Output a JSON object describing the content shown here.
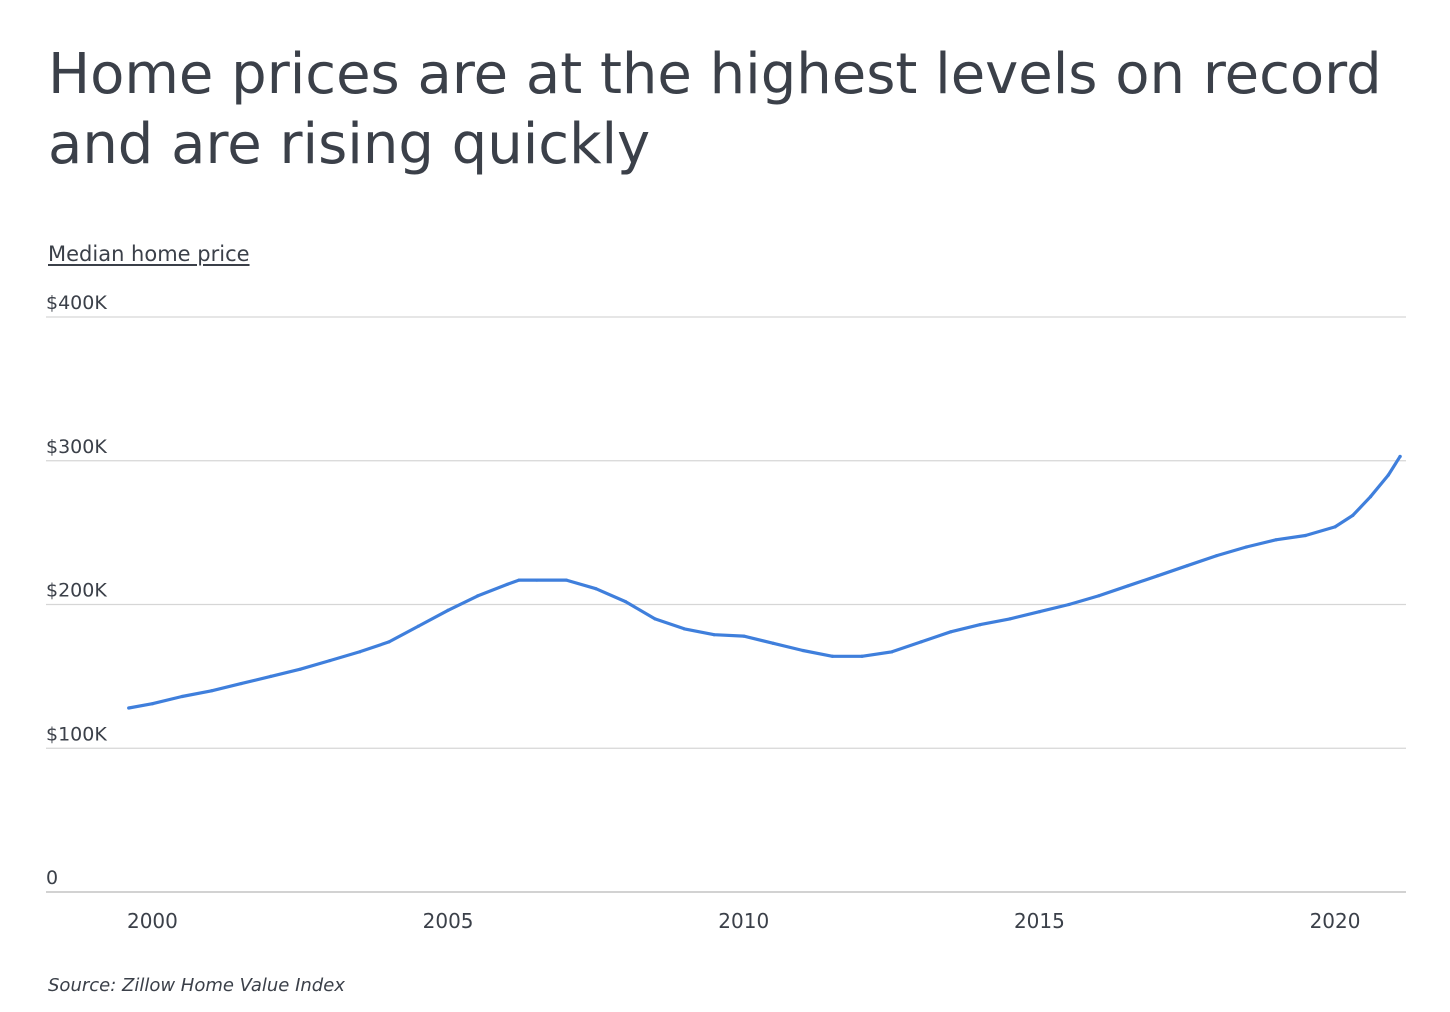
{
  "header": {
    "title": "Home prices are at the highest levels on record and are rising quickly",
    "subtitle": "Median home price"
  },
  "footer": {
    "source": "Source:  Zillow Home Value Index"
  },
  "colors": {
    "line": "#3f7fdc",
    "grid": "#d6d6d6",
    "text": "#3b4049"
  },
  "chart_data": {
    "type": "line",
    "title": "Home prices are at the highest levels on record and are rising quickly",
    "ylabel": "Median home price",
    "xlabel": "",
    "ylim": [
      0,
      400000
    ],
    "xlim": [
      1998.2,
      2021.2
    ],
    "grid": true,
    "yticks": [
      {
        "value": 0,
        "label": "0"
      },
      {
        "value": 100000,
        "label": "$100K"
      },
      {
        "value": 200000,
        "label": "$200K"
      },
      {
        "value": 300000,
        "label": "$300K"
      },
      {
        "value": 400000,
        "label": "$400K"
      }
    ],
    "xticks": [
      {
        "value": 2000,
        "label": "2000"
      },
      {
        "value": 2005,
        "label": "2005"
      },
      {
        "value": 2010,
        "label": "2010"
      },
      {
        "value": 2015,
        "label": "2015"
      },
      {
        "value": 2020,
        "label": "2020"
      }
    ],
    "series": [
      {
        "name": "Median home price",
        "x": [
          1999.6,
          2000.0,
          2000.5,
          2001.0,
          2001.5,
          2002.0,
          2002.5,
          2003.0,
          2003.5,
          2004.0,
          2004.5,
          2005.0,
          2005.5,
          2006.0,
          2006.2,
          2006.5,
          2007.0,
          2007.5,
          2008.0,
          2008.5,
          2009.0,
          2009.5,
          2010.0,
          2010.5,
          2011.0,
          2011.5,
          2012.0,
          2012.5,
          2013.0,
          2013.5,
          2014.0,
          2014.5,
          2015.0,
          2015.5,
          2016.0,
          2016.5,
          2017.0,
          2017.5,
          2018.0,
          2018.5,
          2019.0,
          2019.5,
          2020.0,
          2020.3,
          2020.6,
          2020.9,
          2021.1
        ],
        "values": [
          128000,
          131000,
          136000,
          140000,
          145000,
          150000,
          155000,
          161000,
          167000,
          174000,
          185000,
          196000,
          206000,
          214000,
          217000,
          217000,
          217000,
          211000,
          202000,
          190000,
          183000,
          179000,
          178000,
          173000,
          168000,
          164000,
          164000,
          167000,
          174000,
          181000,
          186000,
          190000,
          195000,
          200000,
          206000,
          213000,
          220000,
          227000,
          234000,
          240000,
          245000,
          248000,
          254000,
          262000,
          275000,
          290000,
          303000
        ]
      }
    ]
  }
}
